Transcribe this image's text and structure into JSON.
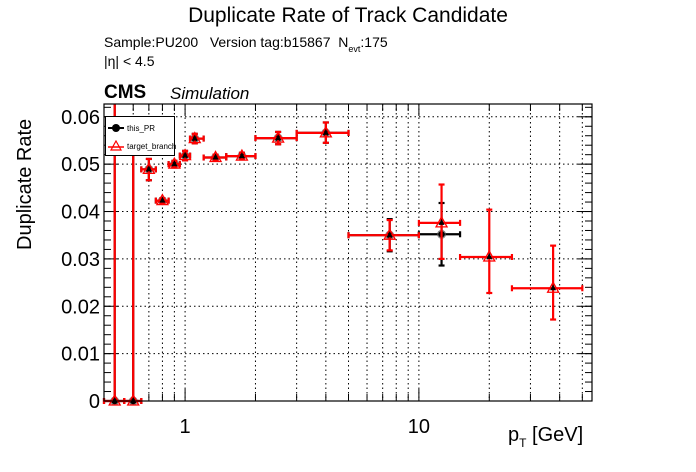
{
  "header": {
    "title": "Duplicate Rate of Track Candidate",
    "sample_line_prefix": "Sample:PU200   Version tag:b15867  N",
    "sample_line_sub": "evt",
    "sample_line_suffix": ":175",
    "eta_cut": "|η| < 4.5",
    "cms_label": "CMS",
    "cms_sublabel": "Simulation"
  },
  "axes": {
    "ylabel": "Duplicate Rate",
    "xlabel_main": "p",
    "xlabel_sub": "T",
    "xlabel_unit": " [GeV]"
  },
  "legend": {
    "items": [
      {
        "label": "this_PR",
        "marker": "filled-circle",
        "color": "#000000"
      },
      {
        "label": "target_branch",
        "marker": "open-triangle",
        "color": "#ff0000"
      }
    ]
  },
  "colors": {
    "this_PR": "#000000",
    "target_branch": "#ff0000",
    "grid": "#000000",
    "marker_fill": "#000000"
  },
  "chart_data": {
    "type": "scatter",
    "title": "Duplicate Rate of Track Candidate",
    "subtitle": "Sample:PU200 Version tag:b15867 N_evt:175; |η| < 4.5",
    "xlabel": "p_T [GeV]",
    "ylabel": "Duplicate Rate",
    "xscale": "log",
    "xlim": [
      0.45,
      55
    ],
    "ylim": [
      0,
      0.0627
    ],
    "xticks": [
      1,
      10
    ],
    "yticks": [
      0,
      0.01,
      0.02,
      0.03,
      0.04,
      0.05,
      0.06
    ],
    "ytick_labels": [
      "0",
      "0.01",
      "0.02",
      "0.03",
      "0.04",
      "0.05",
      "0.06"
    ],
    "grid": true,
    "legend_position": "upper-left",
    "annotations": [
      "CMS Simulation"
    ],
    "series": [
      {
        "name": "this_PR",
        "color": "#000000",
        "marker": "filled-circle",
        "points": [
          {
            "x": 0.5,
            "xlo": 0.45,
            "xhi": 0.55,
            "y": 0.0,
            "ylo": 0.0,
            "yhi": 0.0627
          },
          {
            "x": 0.6,
            "xlo": 0.55,
            "xhi": 0.65,
            "y": 0.0,
            "ylo": 0.0,
            "yhi": 0.052
          },
          {
            "x": 0.7,
            "xlo": 0.65,
            "xhi": 0.75,
            "y": 0.0489,
            "ylo": 0.0466,
            "yhi": 0.0511
          },
          {
            "x": 0.8,
            "xlo": 0.75,
            "xhi": 0.85,
            "y": 0.0423,
            "ylo": 0.0418,
            "yhi": 0.0428
          },
          {
            "x": 0.9,
            "xlo": 0.85,
            "xhi": 0.95,
            "y": 0.05,
            "ylo": 0.0493,
            "yhi": 0.0507
          },
          {
            "x": 1.0,
            "xlo": 0.95,
            "xhi": 1.05,
            "y": 0.0518,
            "ylo": 0.0508,
            "yhi": 0.0528
          },
          {
            "x": 1.1,
            "xlo": 1.05,
            "xhi": 1.2,
            "y": 0.0554,
            "ylo": 0.0544,
            "yhi": 0.0564
          },
          {
            "x": 1.35,
            "xlo": 1.2,
            "xhi": 1.5,
            "y": 0.0514,
            "ylo": 0.0508,
            "yhi": 0.052
          },
          {
            "x": 1.75,
            "xlo": 1.5,
            "xhi": 2.0,
            "y": 0.0517,
            "ylo": 0.051,
            "yhi": 0.0524
          },
          {
            "x": 2.5,
            "xlo": 2.0,
            "xhi": 3.0,
            "y": 0.0555,
            "ylo": 0.0542,
            "yhi": 0.0568
          },
          {
            "x": 4.0,
            "xlo": 3.0,
            "xhi": 5.0,
            "y": 0.0566,
            "ylo": 0.0545,
            "yhi": 0.0588
          },
          {
            "x": 7.5,
            "xlo": 5.0,
            "xhi": 10.0,
            "y": 0.035,
            "ylo": 0.0316,
            "yhi": 0.0384
          },
          {
            "x": 12.5,
            "xlo": 10.0,
            "xhi": 15.0,
            "y": 0.0352,
            "ylo": 0.0286,
            "yhi": 0.0418
          }
        ]
      },
      {
        "name": "target_branch",
        "color": "#ff0000",
        "marker": "open-triangle",
        "points": [
          {
            "x": 0.5,
            "xlo": 0.45,
            "xhi": 0.55,
            "y": 0.0,
            "ylo": 0.0,
            "yhi": 0.0627
          },
          {
            "x": 0.6,
            "xlo": 0.55,
            "xhi": 0.65,
            "y": 0.0,
            "ylo": 0.0,
            "yhi": 0.052
          },
          {
            "x": 0.7,
            "xlo": 0.65,
            "xhi": 0.75,
            "y": 0.0489,
            "ylo": 0.0466,
            "yhi": 0.0511
          },
          {
            "x": 0.8,
            "xlo": 0.75,
            "xhi": 0.85,
            "y": 0.0423,
            "ylo": 0.0418,
            "yhi": 0.0428
          },
          {
            "x": 0.9,
            "xlo": 0.85,
            "xhi": 0.95,
            "y": 0.05,
            "ylo": 0.0493,
            "yhi": 0.0507
          },
          {
            "x": 1.0,
            "xlo": 0.95,
            "xhi": 1.05,
            "y": 0.0518,
            "ylo": 0.0508,
            "yhi": 0.0528
          },
          {
            "x": 1.1,
            "xlo": 1.05,
            "xhi": 1.2,
            "y": 0.0554,
            "ylo": 0.0544,
            "yhi": 0.0564
          },
          {
            "x": 1.35,
            "xlo": 1.2,
            "xhi": 1.5,
            "y": 0.0514,
            "ylo": 0.0508,
            "yhi": 0.052
          },
          {
            "x": 1.75,
            "xlo": 1.5,
            "xhi": 2.0,
            "y": 0.0517,
            "ylo": 0.051,
            "yhi": 0.0524
          },
          {
            "x": 2.5,
            "xlo": 2.0,
            "xhi": 3.0,
            "y": 0.0555,
            "ylo": 0.0542,
            "yhi": 0.0568
          },
          {
            "x": 4.0,
            "xlo": 3.0,
            "xhi": 5.0,
            "y": 0.0566,
            "ylo": 0.0545,
            "yhi": 0.0588
          },
          {
            "x": 7.5,
            "xlo": 5.0,
            "xhi": 10.0,
            "y": 0.035,
            "ylo": 0.0318,
            "yhi": 0.0382
          },
          {
            "x": 12.5,
            "xlo": 10.0,
            "xhi": 15.0,
            "y": 0.0376,
            "ylo": 0.03,
            "yhi": 0.0457
          },
          {
            "x": 20.0,
            "xlo": 15.0,
            "xhi": 25.0,
            "y": 0.0304,
            "ylo": 0.0228,
            "yhi": 0.0404
          },
          {
            "x": 37.5,
            "xlo": 25.0,
            "xhi": 50.0,
            "y": 0.0238,
            "ylo": 0.0172,
            "yhi": 0.0328
          }
        ]
      }
    ]
  }
}
